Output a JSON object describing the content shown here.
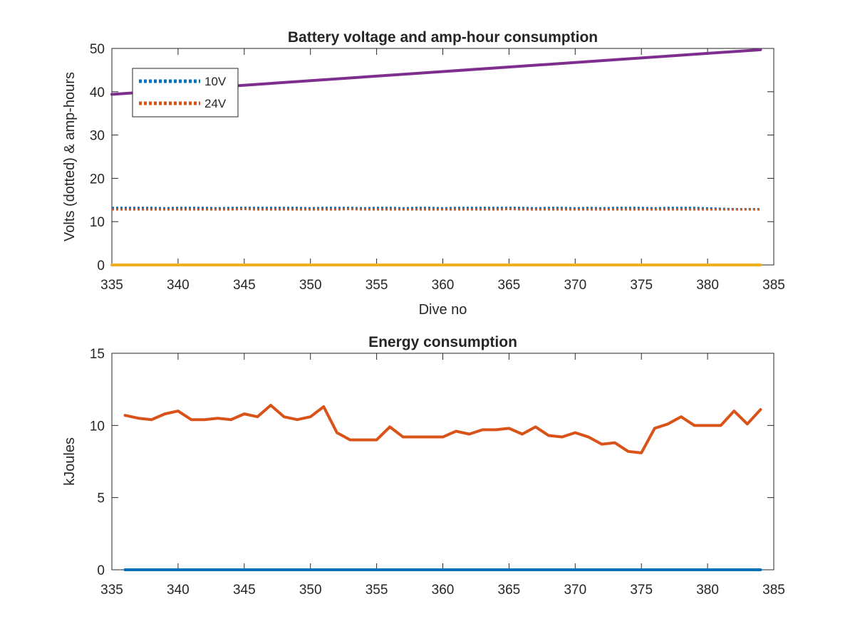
{
  "chart_data": [
    {
      "type": "line",
      "title": "Battery voltage and amp-hour consumption",
      "xlabel": "Dive no",
      "ylabel": "Volts (dotted) & amp-hours",
      "xlim": [
        335,
        385
      ],
      "ylim": [
        0,
        50
      ],
      "xticks": [
        "335",
        "340",
        "345",
        "350",
        "355",
        "360",
        "365",
        "370",
        "375",
        "380",
        "385"
      ],
      "yticks": [
        "0",
        "10",
        "20",
        "30",
        "40",
        "50"
      ],
      "legend": {
        "placement": "top-left",
        "entries": [
          "10V",
          "24V"
        ]
      },
      "grid": false,
      "series": [
        {
          "name": "10V",
          "style": "dotted",
          "color": "#0072BD",
          "x": [
            335,
            336,
            337,
            338,
            339,
            340,
            341,
            342,
            343,
            344,
            345,
            346,
            347,
            348,
            349,
            350,
            351,
            352,
            353,
            354,
            355,
            356,
            357,
            358,
            359,
            360,
            361,
            362,
            363,
            364,
            365,
            366,
            367,
            368,
            369,
            370,
            371,
            372,
            373,
            374,
            375,
            376,
            377,
            378,
            379,
            380,
            381,
            382,
            383,
            384
          ],
          "y": [
            13.2,
            13.2,
            13.2,
            13.2,
            13.1,
            13.2,
            13.2,
            13.2,
            13.1,
            13.2,
            13.2,
            13.2,
            13.2,
            13.2,
            13.2,
            13.1,
            13.2,
            13.2,
            13.2,
            13.1,
            13.2,
            13.2,
            13.1,
            13.2,
            13.2,
            13.1,
            13.2,
            13.2,
            13.2,
            13.2,
            13.2,
            13.2,
            13.1,
            13.2,
            13.2,
            13.1,
            13.2,
            13.1,
            13.2,
            13.2,
            13.2,
            13.1,
            13.2,
            13.2,
            13.2,
            13.1,
            13.0,
            12.9,
            12.9,
            12.9
          ]
        },
        {
          "name": "24V",
          "style": "dotted",
          "color": "#D95319",
          "x": [
            335,
            336,
            337,
            338,
            339,
            340,
            341,
            342,
            343,
            344,
            345,
            346,
            347,
            348,
            349,
            350,
            351,
            352,
            353,
            354,
            355,
            356,
            357,
            358,
            359,
            360,
            361,
            362,
            363,
            364,
            365,
            366,
            367,
            368,
            369,
            370,
            371,
            372,
            373,
            374,
            375,
            376,
            377,
            378,
            379,
            380,
            381,
            382,
            383,
            384
          ],
          "y": [
            12.8,
            12.8,
            12.8,
            12.8,
            12.8,
            12.8,
            12.8,
            12.8,
            12.8,
            12.8,
            12.9,
            12.8,
            12.8,
            12.8,
            12.8,
            12.8,
            12.8,
            12.8,
            12.9,
            12.8,
            12.8,
            12.8,
            12.8,
            12.8,
            12.8,
            12.8,
            12.8,
            12.8,
            12.8,
            12.8,
            12.9,
            12.8,
            12.8,
            12.8,
            12.8,
            12.8,
            12.8,
            12.8,
            12.8,
            12.8,
            12.8,
            12.8,
            12.8,
            12.8,
            12.8,
            12.8,
            12.8,
            12.8,
            12.8,
            12.8
          ]
        },
        {
          "style": "solid",
          "color": "#EDB120",
          "x": [
            335,
            384
          ],
          "y": [
            0,
            0
          ]
        },
        {
          "style": "solid",
          "color": "#7E2F8E",
          "x": [
            335,
            384
          ],
          "y": [
            39.4,
            49.7
          ]
        }
      ]
    },
    {
      "type": "line",
      "title": "Energy consumption",
      "xlabel": "",
      "ylabel": "kJoules",
      "xlim": [
        335,
        385
      ],
      "ylim": [
        0,
        15
      ],
      "xticks": [
        "335",
        "340",
        "345",
        "350",
        "355",
        "360",
        "365",
        "370",
        "375",
        "380",
        "385"
      ],
      "yticks": [
        "0",
        "5",
        "10",
        "15"
      ],
      "grid": false,
      "series": [
        {
          "style": "solid",
          "color": "#0072BD",
          "x": [
            336,
            384
          ],
          "y": [
            0,
            0
          ]
        },
        {
          "style": "solid",
          "color": "#D95319",
          "x": [
            336,
            337,
            338,
            339,
            340,
            341,
            342,
            343,
            344,
            345,
            346,
            347,
            348,
            349,
            350,
            351,
            352,
            353,
            354,
            355,
            356,
            357,
            358,
            359,
            360,
            361,
            362,
            363,
            364,
            365,
            366,
            367,
            368,
            369,
            370,
            371,
            372,
            373,
            374,
            375,
            376,
            377,
            378,
            379,
            380,
            381,
            382,
            383,
            384
          ],
          "y": [
            10.7,
            10.5,
            10.4,
            10.8,
            11.0,
            10.4,
            10.4,
            10.5,
            10.4,
            10.8,
            10.6,
            11.4,
            10.6,
            10.4,
            10.6,
            11.3,
            9.5,
            9.0,
            9.0,
            9.0,
            9.9,
            9.2,
            9.2,
            9.2,
            9.2,
            9.6,
            9.4,
            9.7,
            9.7,
            9.8,
            9.4,
            9.9,
            9.3,
            9.2,
            9.5,
            9.2,
            8.7,
            8.8,
            8.2,
            8.1,
            9.8,
            10.1,
            10.6,
            10.0,
            10.0,
            10.0,
            11.0,
            10.1,
            11.1
          ]
        }
      ]
    }
  ]
}
